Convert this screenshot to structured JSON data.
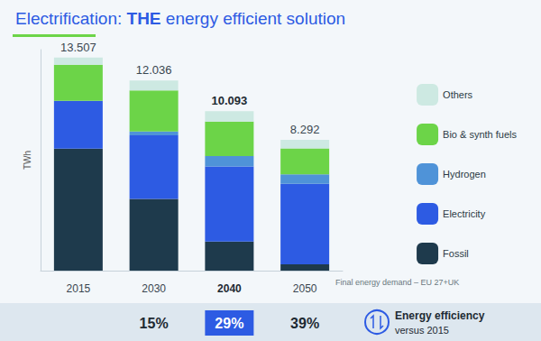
{
  "chart_data": {
    "type": "bar",
    "title": "Electrification: THE energy efficient solution",
    "y_label": "TWh",
    "categories": [
      "2015",
      "2030",
      "2040",
      "2050"
    ],
    "series": [
      {
        "name": "Fossil",
        "color": "#1e3a4c",
        "values": [
          7725,
          4540,
          1850,
          400
        ]
      },
      {
        "name": "Electricity",
        "color": "#2d5be3",
        "values": [
          3030,
          4030,
          4750,
          5100
        ]
      },
      {
        "name": "Hydrogen",
        "color": "#4f93d8",
        "values": [
          0,
          250,
          660,
          600
        ]
      },
      {
        "name": "Bio & synth fuels",
        "color": "#6cd448",
        "values": [
          2290,
          2590,
          2180,
          1650
        ]
      },
      {
        "name": "Others",
        "color": "#cde9e2",
        "values": [
          462,
          626,
          653,
          542
        ]
      }
    ],
    "totals": [
      13507,
      12036,
      10093,
      8292
    ],
    "total_labels": [
      "13.507",
      "12.036",
      "10.093",
      "8.292"
    ],
    "stacked": true,
    "ylim": [
      0,
      14000
    ],
    "yticks": [],
    "tick_labels": "x",
    "grid": false,
    "legend": "right",
    "note": "Final energy demand – EU 27+UK",
    "efficiency": {
      "title": "Energy efficiency",
      "subtitle": "versus 2015",
      "categories": [
        "2030",
        "2040",
        "2050"
      ],
      "values": [
        15,
        29,
        39
      ],
      "value_labels": [
        "15%",
        "29%",
        "39%"
      ]
    }
  }
}
